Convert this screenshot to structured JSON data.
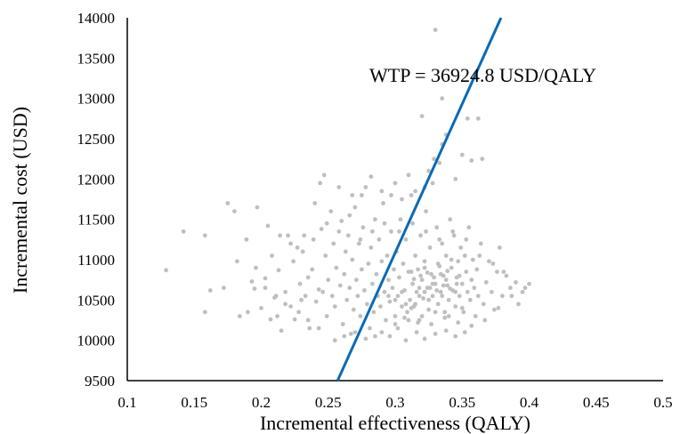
{
  "chart_data": {
    "type": "scatter",
    "title": "",
    "xlabel": "Incremental effectiveness (QALY)",
    "ylabel": "Incremental cost (USD)",
    "xlim": [
      0.1,
      0.5
    ],
    "ylim": [
      9500,
      14000
    ],
    "x_ticks": [
      "0.1",
      "0.15",
      "0.2",
      "0.25",
      "0.3",
      "0.35",
      "0.4",
      "0.45",
      "0.5"
    ],
    "y_ticks": [
      "9500",
      "10000",
      "10500",
      "11000",
      "11500",
      "12000",
      "12500",
      "13000",
      "13500",
      "14000"
    ],
    "grid": false,
    "point_color": "#BFBFBF",
    "line_color": "#0A6AB5",
    "wtp_line": {
      "label": "WTP = 36924.8 USD/QALY",
      "slope": 36924.8,
      "points": [
        [
          0.257,
          9500
        ],
        [
          0.379,
          14000
        ]
      ]
    },
    "series": [
      {
        "points": [
          [
            0.129,
            10870
          ],
          [
            0.142,
            11350
          ],
          [
            0.158,
            11300
          ],
          [
            0.158,
            10350
          ],
          [
            0.162,
            10620
          ],
          [
            0.172,
            10650
          ],
          [
            0.175,
            11700
          ],
          [
            0.18,
            11600
          ],
          [
            0.182,
            10980
          ],
          [
            0.184,
            10300
          ],
          [
            0.19,
            10350
          ],
          [
            0.193,
            10730
          ],
          [
            0.195,
            10640
          ],
          [
            0.197,
            11650
          ],
          [
            0.2,
            10400
          ],
          [
            0.203,
            10770
          ],
          [
            0.205,
            11420
          ],
          [
            0.207,
            10260
          ],
          [
            0.208,
            11050
          ],
          [
            0.21,
            10530
          ],
          [
            0.212,
            10300
          ],
          [
            0.213,
            10870
          ],
          [
            0.215,
            10120
          ],
          [
            0.218,
            10600
          ],
          [
            0.22,
            11300
          ],
          [
            0.222,
            10420
          ],
          [
            0.224,
            10980
          ],
          [
            0.225,
            10260
          ],
          [
            0.227,
            11150
          ],
          [
            0.229,
            10700
          ],
          [
            0.23,
            10500
          ],
          [
            0.232,
            11300
          ],
          [
            0.233,
            10550
          ],
          [
            0.235,
            10780
          ],
          [
            0.236,
            10150
          ],
          [
            0.238,
            10880
          ],
          [
            0.24,
            11700
          ],
          [
            0.241,
            10480
          ],
          [
            0.243,
            10630
          ],
          [
            0.244,
            11950
          ],
          [
            0.245,
            11380
          ],
          [
            0.246,
            10600
          ],
          [
            0.248,
            11050
          ],
          [
            0.249,
            10300
          ],
          [
            0.25,
            10750
          ],
          [
            0.252,
            11600
          ],
          [
            0.253,
            10550
          ],
          [
            0.254,
            11200
          ],
          [
            0.255,
            10420
          ],
          [
            0.256,
            10900
          ],
          [
            0.258,
            11900
          ],
          [
            0.259,
            10680
          ],
          [
            0.26,
            11480
          ],
          [
            0.261,
            10200
          ],
          [
            0.262,
            10820
          ],
          [
            0.263,
            11100
          ],
          [
            0.264,
            10500
          ],
          [
            0.265,
            11300
          ],
          [
            0.266,
            10650
          ],
          [
            0.267,
            10080
          ],
          [
            0.268,
            11000
          ],
          [
            0.269,
            10380
          ],
          [
            0.27,
            11650
          ],
          [
            0.271,
            10750
          ],
          [
            0.272,
            10550
          ],
          [
            0.273,
            11200
          ],
          [
            0.274,
            10300
          ],
          [
            0.275,
            10880
          ],
          [
            0.276,
            11400
          ],
          [
            0.277,
            10620
          ],
          [
            0.278,
            11900
          ],
          [
            0.279,
            10450
          ],
          [
            0.28,
            10950
          ],
          [
            0.281,
            10150
          ],
          [
            0.282,
            11150
          ],
          [
            0.283,
            10700
          ],
          [
            0.284,
            10350
          ],
          [
            0.285,
            11500
          ],
          [
            0.286,
            10820
          ],
          [
            0.287,
            10550
          ],
          [
            0.288,
            11250
          ],
          [
            0.289,
            10420
          ],
          [
            0.29,
            10980
          ],
          [
            0.291,
            11700
          ],
          [
            0.292,
            10600
          ],
          [
            0.293,
            10250
          ],
          [
            0.294,
            11050
          ],
          [
            0.295,
            10750
          ],
          [
            0.296,
            10480
          ],
          [
            0.297,
            11350
          ],
          [
            0.298,
            10650
          ],
          [
            0.299,
            10880
          ],
          [
            0.3,
            10300
          ],
          [
            0.301,
            11100
          ],
          [
            0.302,
            10550
          ],
          [
            0.303,
            10780
          ],
          [
            0.304,
            11500
          ],
          [
            0.305,
            10420
          ],
          [
            0.306,
            10950
          ],
          [
            0.307,
            10620
          ],
          [
            0.308,
            11250
          ],
          [
            0.309,
            10350
          ],
          [
            0.31,
            10850
          ],
          [
            0.311,
            10500
          ],
          [
            0.312,
            11800
          ],
          [
            0.313,
            10700
          ],
          [
            0.314,
            10420
          ],
          [
            0.315,
            11050
          ],
          [
            0.316,
            10600
          ],
          [
            0.317,
            10880
          ],
          [
            0.318,
            10250
          ],
          [
            0.319,
            11300
          ],
          [
            0.32,
            10750
          ],
          [
            0.321,
            10520
          ],
          [
            0.322,
            10980
          ],
          [
            0.323,
            11600
          ],
          [
            0.324,
            10650
          ],
          [
            0.325,
            10380
          ],
          [
            0.326,
            11150
          ],
          [
            0.327,
            10820
          ],
          [
            0.328,
            10550
          ],
          [
            0.329,
            12250
          ],
          [
            0.33,
            10700
          ],
          [
            0.331,
            11400
          ],
          [
            0.332,
            10450
          ],
          [
            0.333,
            10920
          ],
          [
            0.334,
            10600
          ],
          [
            0.335,
            11200
          ],
          [
            0.336,
            10800
          ],
          [
            0.337,
            10350
          ],
          [
            0.338,
            11050
          ],
          [
            0.339,
            10680
          ],
          [
            0.34,
            10500
          ],
          [
            0.341,
            11500
          ],
          [
            0.342,
            10900
          ],
          [
            0.343,
            10620
          ],
          [
            0.344,
            11300
          ],
          [
            0.345,
            10420
          ],
          [
            0.346,
            10780
          ],
          [
            0.347,
            10980
          ],
          [
            0.348,
            10550
          ],
          [
            0.349,
            11150
          ],
          [
            0.35,
            10700
          ],
          [
            0.351,
            10350
          ],
          [
            0.352,
            11050
          ],
          [
            0.353,
            10850
          ],
          [
            0.354,
            10600
          ],
          [
            0.355,
            11400
          ],
          [
            0.356,
            10500
          ],
          [
            0.357,
            10750
          ],
          [
            0.358,
            11000
          ],
          [
            0.359,
            10650
          ],
          [
            0.36,
            10300
          ],
          [
            0.361,
            10880
          ],
          [
            0.362,
            10550
          ],
          [
            0.364,
            11200
          ],
          [
            0.366,
            10450
          ],
          [
            0.368,
            10720
          ],
          [
            0.37,
            10980
          ],
          [
            0.372,
            10600
          ],
          [
            0.374,
            10380
          ],
          [
            0.376,
            10850
          ],
          [
            0.378,
            11150
          ],
          [
            0.38,
            10550
          ],
          [
            0.383,
            10800
          ],
          [
            0.386,
            10650
          ],
          [
            0.39,
            10720
          ],
          [
            0.395,
            10600
          ],
          [
            0.4,
            10700
          ],
          [
            0.247,
            12050
          ],
          [
            0.282,
            12030
          ],
          [
            0.305,
            11750
          ],
          [
            0.32,
            12780
          ],
          [
            0.322,
            11900
          ],
          [
            0.325,
            12100
          ],
          [
            0.33,
            13850
          ],
          [
            0.335,
            12430
          ],
          [
            0.333,
            12200
          ],
          [
            0.335,
            13000
          ],
          [
            0.35,
            12300
          ],
          [
            0.354,
            12750
          ],
          [
            0.357,
            12230
          ],
          [
            0.362,
            12750
          ],
          [
            0.365,
            12250
          ],
          [
            0.345,
            12000
          ],
          [
            0.338,
            12550
          ],
          [
            0.328,
            11950
          ],
          [
            0.3,
            11950
          ],
          [
            0.315,
            11850
          ],
          [
            0.31,
            12050
          ],
          [
            0.297,
            11800
          ],
          [
            0.29,
            11850
          ],
          [
            0.275,
            11800
          ],
          [
            0.268,
            11800
          ],
          [
            0.285,
            10050
          ],
          [
            0.29,
            10100
          ],
          [
            0.296,
            10050
          ],
          [
            0.302,
            10150
          ],
          [
            0.308,
            10000
          ],
          [
            0.316,
            10100
          ],
          [
            0.322,
            10020
          ],
          [
            0.33,
            10080
          ],
          [
            0.338,
            10120
          ],
          [
            0.345,
            10050
          ],
          [
            0.352,
            10100
          ],
          [
            0.3,
            10200
          ],
          [
            0.31,
            10250
          ],
          [
            0.32,
            10300
          ],
          [
            0.33,
            10350
          ],
          [
            0.34,
            10300
          ],
          [
            0.35,
            10400
          ],
          [
            0.315,
            10450
          ],
          [
            0.325,
            10500
          ],
          [
            0.335,
            10550
          ],
          [
            0.345,
            10600
          ],
          [
            0.318,
            10650
          ],
          [
            0.328,
            10700
          ],
          [
            0.338,
            10750
          ],
          [
            0.348,
            10800
          ],
          [
            0.312,
            10850
          ],
          [
            0.322,
            10900
          ],
          [
            0.332,
            10950
          ],
          [
            0.342,
            11000
          ],
          [
            0.305,
            10600
          ],
          [
            0.295,
            10550
          ],
          [
            0.3,
            10500
          ],
          [
            0.308,
            10450
          ],
          [
            0.312,
            10400
          ],
          [
            0.318,
            10550
          ],
          [
            0.322,
            10600
          ],
          [
            0.326,
            10650
          ],
          [
            0.331,
            10620
          ],
          [
            0.336,
            10680
          ],
          [
            0.341,
            10640
          ],
          [
            0.346,
            10700
          ],
          [
            0.314,
            10760
          ],
          [
            0.319,
            10800
          ],
          [
            0.324,
            10840
          ],
          [
            0.329,
            10780
          ],
          [
            0.334,
            10820
          ],
          [
            0.339,
            10860
          ],
          [
            0.255,
            10000
          ],
          [
            0.262,
            10050
          ],
          [
            0.27,
            10100
          ],
          [
            0.278,
            10020
          ],
          [
            0.243,
            10150
          ],
          [
            0.235,
            10250
          ],
          [
            0.228,
            10350
          ],
          [
            0.218,
            10450
          ],
          [
            0.211,
            10550
          ],
          [
            0.203,
            10650
          ],
          [
            0.196,
            10900
          ],
          [
            0.189,
            11250
          ],
          [
            0.214,
            11300
          ],
          [
            0.222,
            11200
          ],
          [
            0.231,
            11100
          ],
          [
            0.239,
            11250
          ],
          [
            0.249,
            11450
          ],
          [
            0.258,
            11350
          ],
          [
            0.266,
            11550
          ],
          [
            0.274,
            11250
          ],
          [
            0.283,
            11350
          ],
          [
            0.292,
            11450
          ],
          [
            0.303,
            11350
          ],
          [
            0.313,
            11450
          ],
          [
            0.323,
            11350
          ],
          [
            0.333,
            11250
          ],
          [
            0.343,
            11350
          ],
          [
            0.353,
            11250
          ],
          [
            0.363,
            11050
          ],
          [
            0.373,
            10950
          ],
          [
            0.381,
            10850
          ],
          [
            0.387,
            10550
          ],
          [
            0.392,
            10450
          ],
          [
            0.397,
            10650
          ],
          [
            0.377,
            10400
          ],
          [
            0.367,
            10250
          ],
          [
            0.357,
            10180
          ],
          [
            0.347,
            10220
          ],
          [
            0.337,
            10280
          ],
          [
            0.327,
            10200
          ],
          [
            0.317,
            10220
          ],
          [
            0.307,
            10280
          ]
        ]
      }
    ]
  }
}
